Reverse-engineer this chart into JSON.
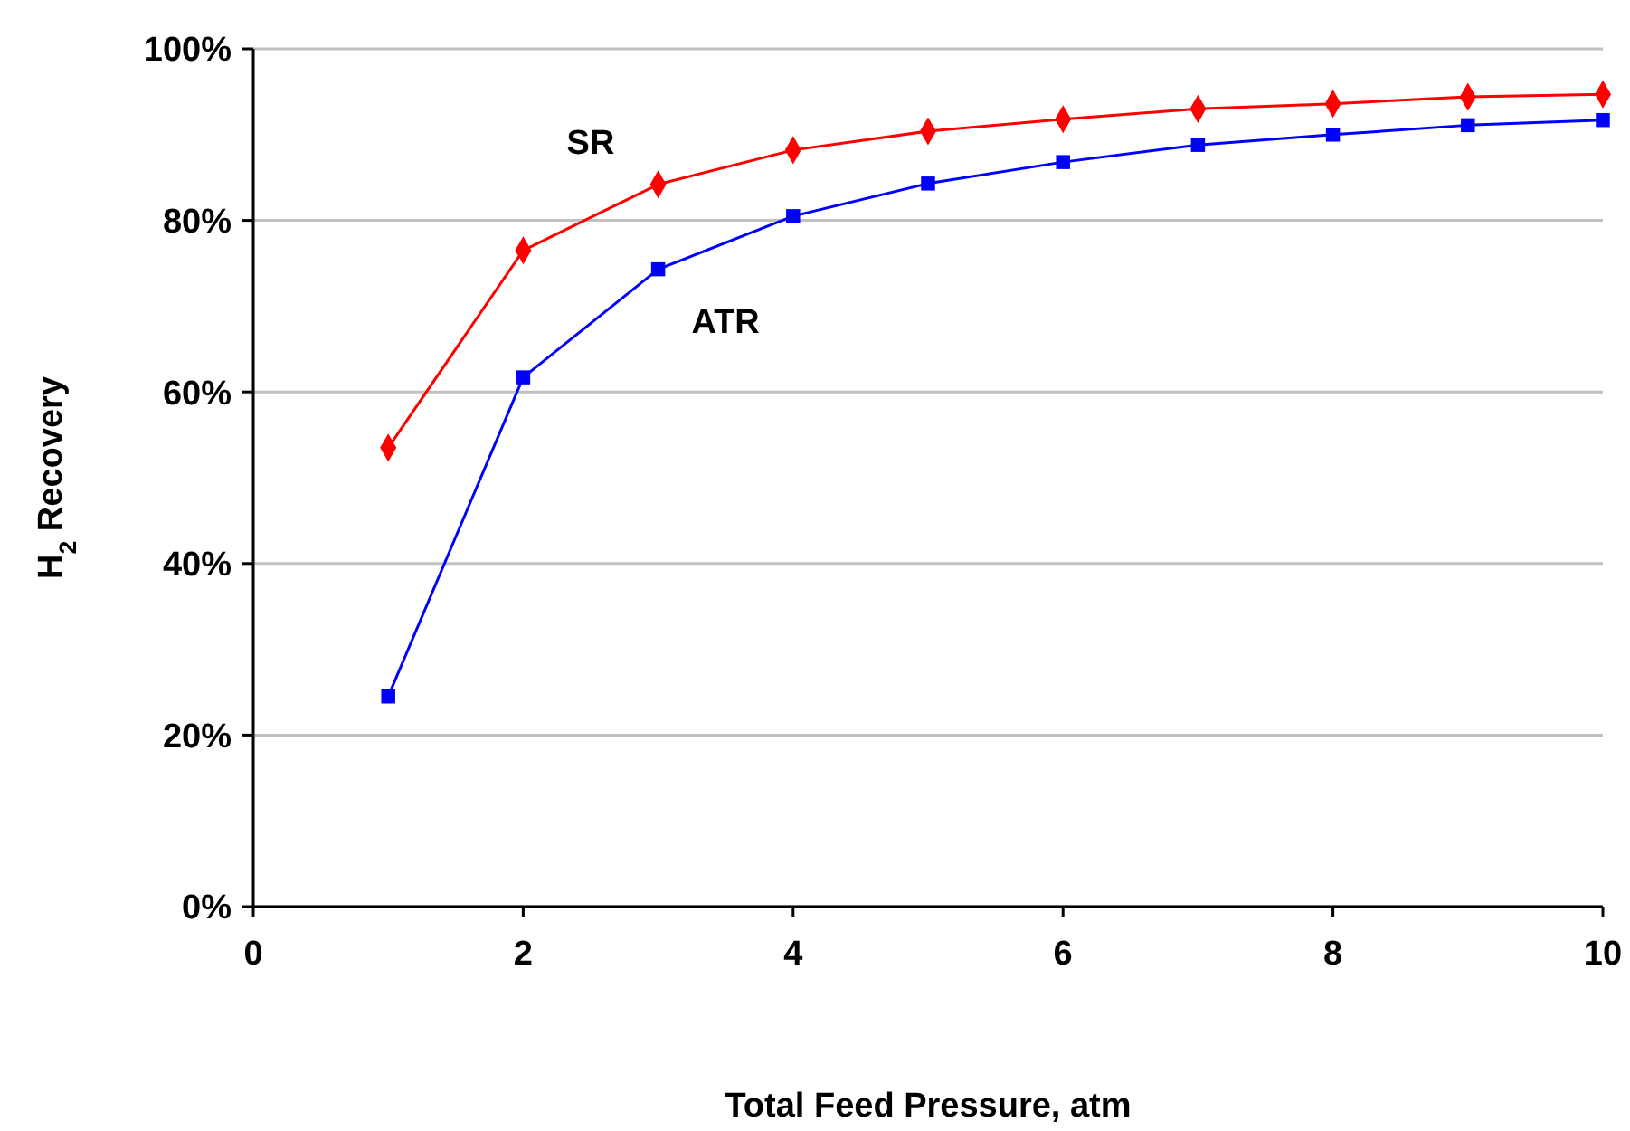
{
  "chart_data": {
    "type": "line",
    "xlabel": "Total Feed Pressure, atm",
    "ylabel": "H$_{2}$ Recovery",
    "x": [
      1,
      2,
      3,
      4,
      5,
      6,
      7,
      8,
      9,
      10
    ],
    "series": [
      {
        "name": "SR",
        "color": "#ff0000",
        "marker": "diamond",
        "values": [
          53.5,
          76.5,
          84.2,
          88.2,
          90.4,
          91.8,
          93.0,
          93.6,
          94.4,
          94.7
        ]
      },
      {
        "name": "ATR",
        "color": "#0000ff",
        "marker": "square",
        "values": [
          24.5,
          61.7,
          74.3,
          80.5,
          84.3,
          86.8,
          88.8,
          90.0,
          91.1,
          91.7
        ]
      }
    ],
    "xlim": [
      0,
      10
    ],
    "xticks": [
      0,
      2,
      4,
      6,
      8,
      10
    ],
    "ylim": [
      0,
      100
    ],
    "yticks": [
      {
        "value": 0,
        "label": "0%"
      },
      {
        "value": 20,
        "label": "20%"
      },
      {
        "value": 40,
        "label": "40%"
      },
      {
        "value": 60,
        "label": "60%"
      },
      {
        "value": 80,
        "label": "80%"
      },
      {
        "value": 100,
        "label": "100%"
      }
    ],
    "grid": "y"
  }
}
